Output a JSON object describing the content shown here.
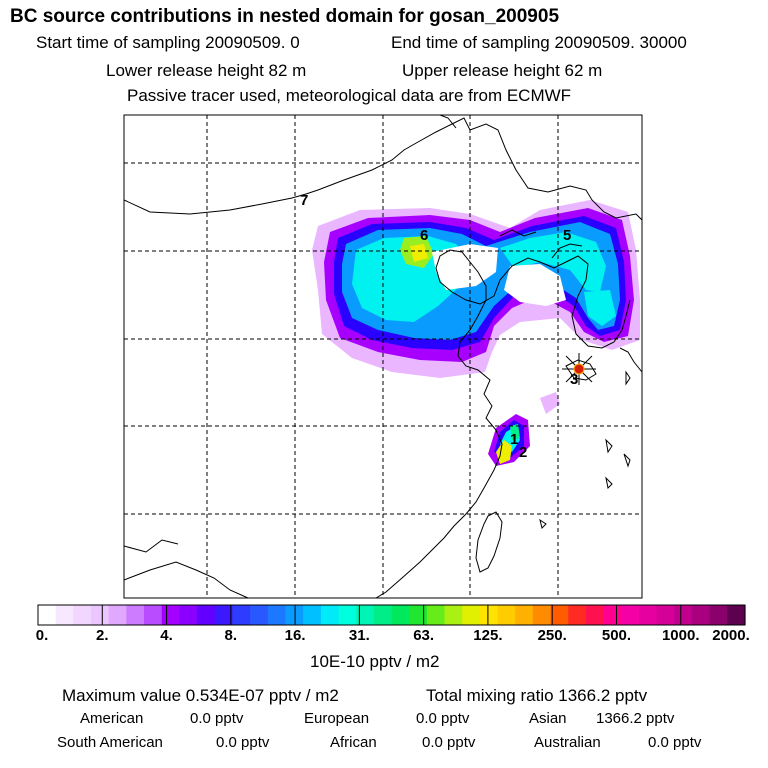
{
  "header": {
    "title": "BC  source contributions in nested domain for gosan_200905",
    "start_time": "Start time of sampling 20090509.     0",
    "end_time": "End time of sampling 20090509. 30000",
    "lower_release": "Lower release height   82 m",
    "upper_release": "Upper release height   62 m",
    "tracer_info": "Passive tracer used, meteorological data are from ECMWF"
  },
  "map": {
    "site_labels": [
      "1",
      "2",
      "3",
      "5",
      "6",
      "7"
    ],
    "colors": {
      "plume_outer": "#e9b6ff",
      "plume_violet": "#a800ff",
      "plume_blue": "#2a00ff",
      "plume_mid": "#0a9bff",
      "plume_cyan": "#00f2f0",
      "plume_green": "#99ee22",
      "plume_yellow": "#f0ee00",
      "coast": "#000000",
      "grid": "#000000",
      "marker": "#d81e00"
    }
  },
  "colorbar": {
    "tick_labels": [
      "0.",
      "2.",
      "4.",
      "8.",
      "16.",
      "31.",
      "63.",
      "125.",
      "250.",
      "500.",
      "1000.",
      "2000."
    ],
    "colors": [
      "#ffffff",
      "#f8e8ff",
      "#f2d6ff",
      "#ecc6ff",
      "#e0a8ff",
      "#cd7cff",
      "#b94cff",
      "#a400ff",
      "#8a00ff",
      "#6200ff",
      "#3c18ff",
      "#2e3cff",
      "#2a58ff",
      "#1c78ff",
      "#0a9bff",
      "#00c0ff",
      "#00eaf8",
      "#00ffde",
      "#00f4b4",
      "#00ee88",
      "#00e85c",
      "#20e632",
      "#66ec18",
      "#aaf012",
      "#e0f000",
      "#ffe400",
      "#ffcc00",
      "#ffb000",
      "#ff8c00",
      "#ff5c00",
      "#ff2a22",
      "#ff1050",
      "#ff0090",
      "#f500a6",
      "#e600a0",
      "#d40098",
      "#c0008c",
      "#a8007e",
      "#8a006c",
      "#5e0050"
    ],
    "unit_label": "10E-10 pptv / m2"
  },
  "summary": {
    "max_value": "Maximum value  0.534E-07 pptv / m2",
    "total_mixing": "Total mixing ratio     1366.2 pptv",
    "regions": [
      {
        "name": "American",
        "value": "0.0 pptv"
      },
      {
        "name": "European",
        "value": "0.0 pptv"
      },
      {
        "name": "Asian",
        "value": "1366.2 pptv"
      },
      {
        "name": "South American",
        "value": "0.0 pptv"
      },
      {
        "name": "African",
        "value": "0.0 pptv"
      },
      {
        "name": "Australian",
        "value": "0.0 pptv"
      }
    ]
  }
}
